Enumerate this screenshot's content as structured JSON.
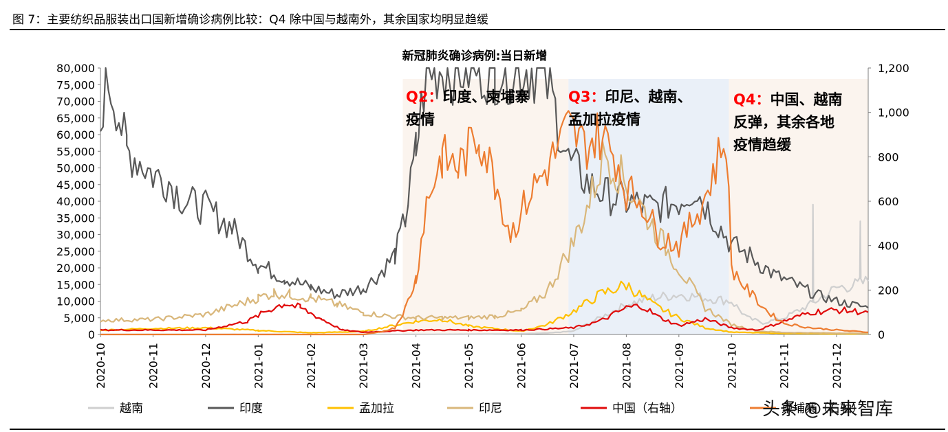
{
  "caption": "图 7：主要纺织品服装出口国新增确诊病例比较：Q4 除中国与越南外，其余国家均明显趋缓",
  "watermark": "头条 @未来智库",
  "chart_data": {
    "type": "line",
    "title": "新冠肺炎确诊病例:当日新增",
    "left_axis": {
      "ylim": [
        0,
        80000
      ],
      "ticks": [
        "0",
        "5,000",
        "10,000",
        "15,000",
        "20,000",
        "25,000",
        "30,000",
        "35,000",
        "40,000",
        "45,000",
        "50,000",
        "55,000",
        "60,000",
        "65,000",
        "70,000",
        "75,000",
        "80,000"
      ]
    },
    "right_axis": {
      "ylim": [
        0,
        1200
      ],
      "ticks": [
        "0",
        "200",
        "400",
        "600",
        "800",
        "1,000",
        "1,200"
      ]
    },
    "x_ticks": [
      "2020-10",
      "2020-11",
      "2020-12",
      "2021-01",
      "2021-02",
      "2021-03",
      "2021-04",
      "2021-05",
      "2021-06",
      "2021-07",
      "2021-08",
      "2021-09",
      "2021-10",
      "2021-11",
      "2021-12"
    ],
    "bands": [
      {
        "name": "Q2",
        "from": 5.75,
        "to": 8.9,
        "color": "#fbf4ee"
      },
      {
        "name": "Q3",
        "from": 8.9,
        "to": 11.95,
        "color": "#eaf0f8"
      },
      {
        "name": "Q4",
        "from": 11.95,
        "to": 14.6,
        "color": "#fbf4ee"
      }
    ],
    "annotations": [
      {
        "q": "Q2",
        "sep": "：",
        "lines": [
          "印度、柬埔寨",
          "疫情"
        ]
      },
      {
        "q": "Q3",
        "sep": "：",
        "lines": [
          "印尼、越南、",
          "孟加拉疫情"
        ]
      },
      {
        "q": "Q4",
        "sep": "：",
        "lines": [
          "中国、越南",
          "反弹，其余各地",
          "疫情趋缓"
        ]
      }
    ],
    "series": [
      {
        "name": "越南",
        "axis": "left",
        "color": "#cfcfcf",
        "points": [
          [
            0,
            30
          ],
          [
            1,
            30
          ],
          [
            2,
            40
          ],
          [
            3,
            60
          ],
          [
            4,
            40
          ],
          [
            5,
            30
          ],
          [
            6,
            30
          ],
          [
            7,
            100
          ],
          [
            8,
            200
          ],
          [
            8.5,
            400
          ],
          [
            9,
            1000
          ],
          [
            9.5,
            5000
          ],
          [
            10,
            9000
          ],
          [
            10.5,
            11000
          ],
          [
            11,
            12000
          ],
          [
            11.5,
            11000
          ],
          [
            12,
            10000
          ],
          [
            12.3,
            5000
          ],
          [
            12.6,
            3500
          ],
          [
            13,
            5000
          ],
          [
            13.5,
            9000
          ],
          [
            14,
            14000
          ],
          [
            14.4,
            15000
          ],
          [
            14.6,
            16000
          ]
        ],
        "spikes": [
          [
            13.55,
            39000
          ],
          [
            14.45,
            34000
          ]
        ]
      },
      {
        "name": "印度",
        "axis": "left",
        "color": "#595959",
        "points": [
          [
            0,
            62000
          ],
          [
            0.1,
            79000
          ],
          [
            0.3,
            70000
          ],
          [
            0.5,
            55000
          ],
          [
            0.7,
            53000
          ],
          [
            1,
            48000
          ],
          [
            1.3,
            46000
          ],
          [
            1.6,
            40000
          ],
          [
            2,
            38000
          ],
          [
            2.5,
            32000
          ],
          [
            3,
            21000
          ],
          [
            3.5,
            17000
          ],
          [
            4,
            14000
          ],
          [
            4.5,
            12000
          ],
          [
            5,
            14000
          ],
          [
            5.3,
            18000
          ],
          [
            5.6,
            24000
          ],
          [
            5.8,
            35000
          ],
          [
            6,
            55000
          ],
          [
            6.2,
            80000
          ],
          [
            7.5,
            80000
          ],
          [
            8.4,
            80000
          ],
          [
            8.6,
            70000
          ],
          [
            8.9,
            52000
          ],
          [
            9.3,
            45000
          ],
          [
            9.6,
            42000
          ],
          [
            10,
            40000
          ],
          [
            10.5,
            38000
          ],
          [
            11,
            40000
          ],
          [
            11.3,
            44000
          ],
          [
            11.7,
            34000
          ],
          [
            12,
            27000
          ],
          [
            12.4,
            23000
          ],
          [
            12.8,
            18000
          ],
          [
            13.2,
            15000
          ],
          [
            13.6,
            12000
          ],
          [
            14,
            10000
          ],
          [
            14.6,
            8000
          ]
        ]
      },
      {
        "name": "孟加拉",
        "axis": "left",
        "color": "#ffc000",
        "points": [
          [
            0,
            1300
          ],
          [
            1,
            1800
          ],
          [
            2,
            2000
          ],
          [
            3,
            1200
          ],
          [
            4,
            500
          ],
          [
            5,
            900
          ],
          [
            6,
            4000
          ],
          [
            6.5,
            4500
          ],
          [
            7,
            2500
          ],
          [
            8,
            1000
          ],
          [
            8.5,
            3000
          ],
          [
            9,
            7000
          ],
          [
            9.5,
            12000
          ],
          [
            10,
            15000
          ],
          [
            10.5,
            9000
          ],
          [
            11,
            5000
          ],
          [
            11.5,
            2000
          ],
          [
            12,
            700
          ],
          [
            13,
            300
          ],
          [
            14,
            200
          ],
          [
            14.6,
            200
          ]
        ]
      },
      {
        "name": "印尼",
        "axis": "left",
        "color": "#d9b77b",
        "points": [
          [
            0,
            4300
          ],
          [
            1,
            4500
          ],
          [
            2,
            6000
          ],
          [
            3,
            11000
          ],
          [
            3.3,
            12500
          ],
          [
            3.6,
            12000
          ],
          [
            4,
            11000
          ],
          [
            4.5,
            9000
          ],
          [
            5,
            6500
          ],
          [
            5.5,
            5500
          ],
          [
            6,
            5000
          ],
          [
            6.5,
            5000
          ],
          [
            7,
            5000
          ],
          [
            7.5,
            5500
          ],
          [
            8,
            7000
          ],
          [
            8.5,
            13000
          ],
          [
            9,
            28000
          ],
          [
            9.3,
            40000
          ],
          [
            9.6,
            55000
          ],
          [
            10,
            45000
          ],
          [
            10.3,
            38000
          ],
          [
            10.6,
            30000
          ],
          [
            11,
            20000
          ],
          [
            11.5,
            8000
          ],
          [
            12,
            3000
          ],
          [
            12.5,
            1000
          ],
          [
            13,
            600
          ],
          [
            14,
            400
          ],
          [
            14.6,
            300
          ]
        ]
      },
      {
        "name": "中国（右轴）",
        "axis": "right",
        "color": "#e00b0b",
        "points": [
          [
            0,
            20
          ],
          [
            1,
            20
          ],
          [
            2,
            20
          ],
          [
            2.8,
            60
          ],
          [
            3.2,
            110
          ],
          [
            3.5,
            140
          ],
          [
            3.8,
            120
          ],
          [
            4.2,
            70
          ],
          [
            4.6,
            20
          ],
          [
            5,
            10
          ],
          [
            5.5,
            15
          ],
          [
            6,
            20
          ],
          [
            7,
            20
          ],
          [
            8,
            20
          ],
          [
            9,
            30
          ],
          [
            9.5,
            60
          ],
          [
            10,
            120
          ],
          [
            10.3,
            130
          ],
          [
            10.6,
            80
          ],
          [
            11,
            40
          ],
          [
            11.5,
            70
          ],
          [
            12,
            30
          ],
          [
            12.5,
            20
          ],
          [
            13,
            60
          ],
          [
            13.5,
            100
          ],
          [
            14,
            110
          ],
          [
            14.6,
            100
          ]
        ]
      },
      {
        "name": "柬埔寨（右轴）",
        "axis": "right",
        "color": "#ed7d31",
        "points": [
          [
            0,
            0
          ],
          [
            5,
            0
          ],
          [
            5.3,
            10
          ],
          [
            5.6,
            30
          ],
          [
            5.8,
            120
          ],
          [
            6,
            250
          ],
          [
            6.2,
            600
          ],
          [
            6.5,
            800
          ],
          [
            6.8,
            750
          ],
          [
            7.2,
            900
          ],
          [
            7.5,
            700
          ],
          [
            7.8,
            450
          ],
          [
            8.2,
            650
          ],
          [
            8.5,
            750
          ],
          [
            8.9,
            930
          ],
          [
            9.2,
            850
          ],
          [
            9.5,
            900
          ],
          [
            9.8,
            800
          ],
          [
            10,
            650
          ],
          [
            10.3,
            600
          ],
          [
            10.6,
            450
          ],
          [
            11,
            400
          ],
          [
            11.5,
            620
          ],
          [
            11.9,
            900
          ],
          [
            12,
            300
          ],
          [
            12.3,
            200
          ],
          [
            12.7,
            100
          ],
          [
            13,
            50
          ],
          [
            13.5,
            30
          ],
          [
            14,
            20
          ],
          [
            14.6,
            10
          ]
        ]
      }
    ],
    "legend_position": "bottom"
  }
}
